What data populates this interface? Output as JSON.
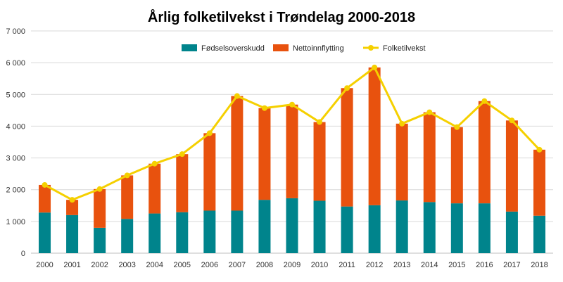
{
  "chart_data": {
    "type": "bar",
    "title": "Årlig folketilvekst i Trøndelag 2000-2018",
    "xlabel": "",
    "ylabel": "",
    "ylim": [
      0,
      7000
    ],
    "yticks": [
      "0",
      "1 000",
      "2 000",
      "3 000",
      "4 000",
      "5 000",
      "6 000",
      "7 000"
    ],
    "grid": true,
    "legend_position": "top",
    "categories": [
      "2000",
      "2001",
      "2002",
      "2003",
      "2004",
      "2005",
      "2006",
      "2007",
      "2008",
      "2009",
      "2010",
      "2011",
      "2012",
      "2013",
      "2014",
      "2015",
      "2016",
      "2017",
      "2018"
    ],
    "series": [
      {
        "name": "Fødselsoverskudd",
        "kind": "stacked-bar",
        "color": "#00848C",
        "values": [
          1280,
          1200,
          800,
          1080,
          1250,
          1290,
          1340,
          1340,
          1680,
          1730,
          1650,
          1470,
          1510,
          1660,
          1610,
          1570,
          1570,
          1310,
          1180
        ]
      },
      {
        "name": "Nettoinnflytting",
        "kind": "stacked-bar",
        "color": "#E8520E",
        "values": [
          870,
          480,
          1220,
          1370,
          1570,
          1830,
          2440,
          3610,
          2890,
          2950,
          2480,
          3730,
          4340,
          2420,
          2830,
          2400,
          3220,
          2870,
          2080
        ]
      },
      {
        "name": "Folketilvekst",
        "kind": "line",
        "color": "#F5D000",
        "values": [
          2150,
          1680,
          2020,
          2450,
          2820,
          3120,
          3780,
          4950,
          4570,
          4680,
          4130,
          5200,
          5850,
          4080,
          4440,
          3970,
          4790,
          4180,
          3260
        ]
      }
    ]
  }
}
